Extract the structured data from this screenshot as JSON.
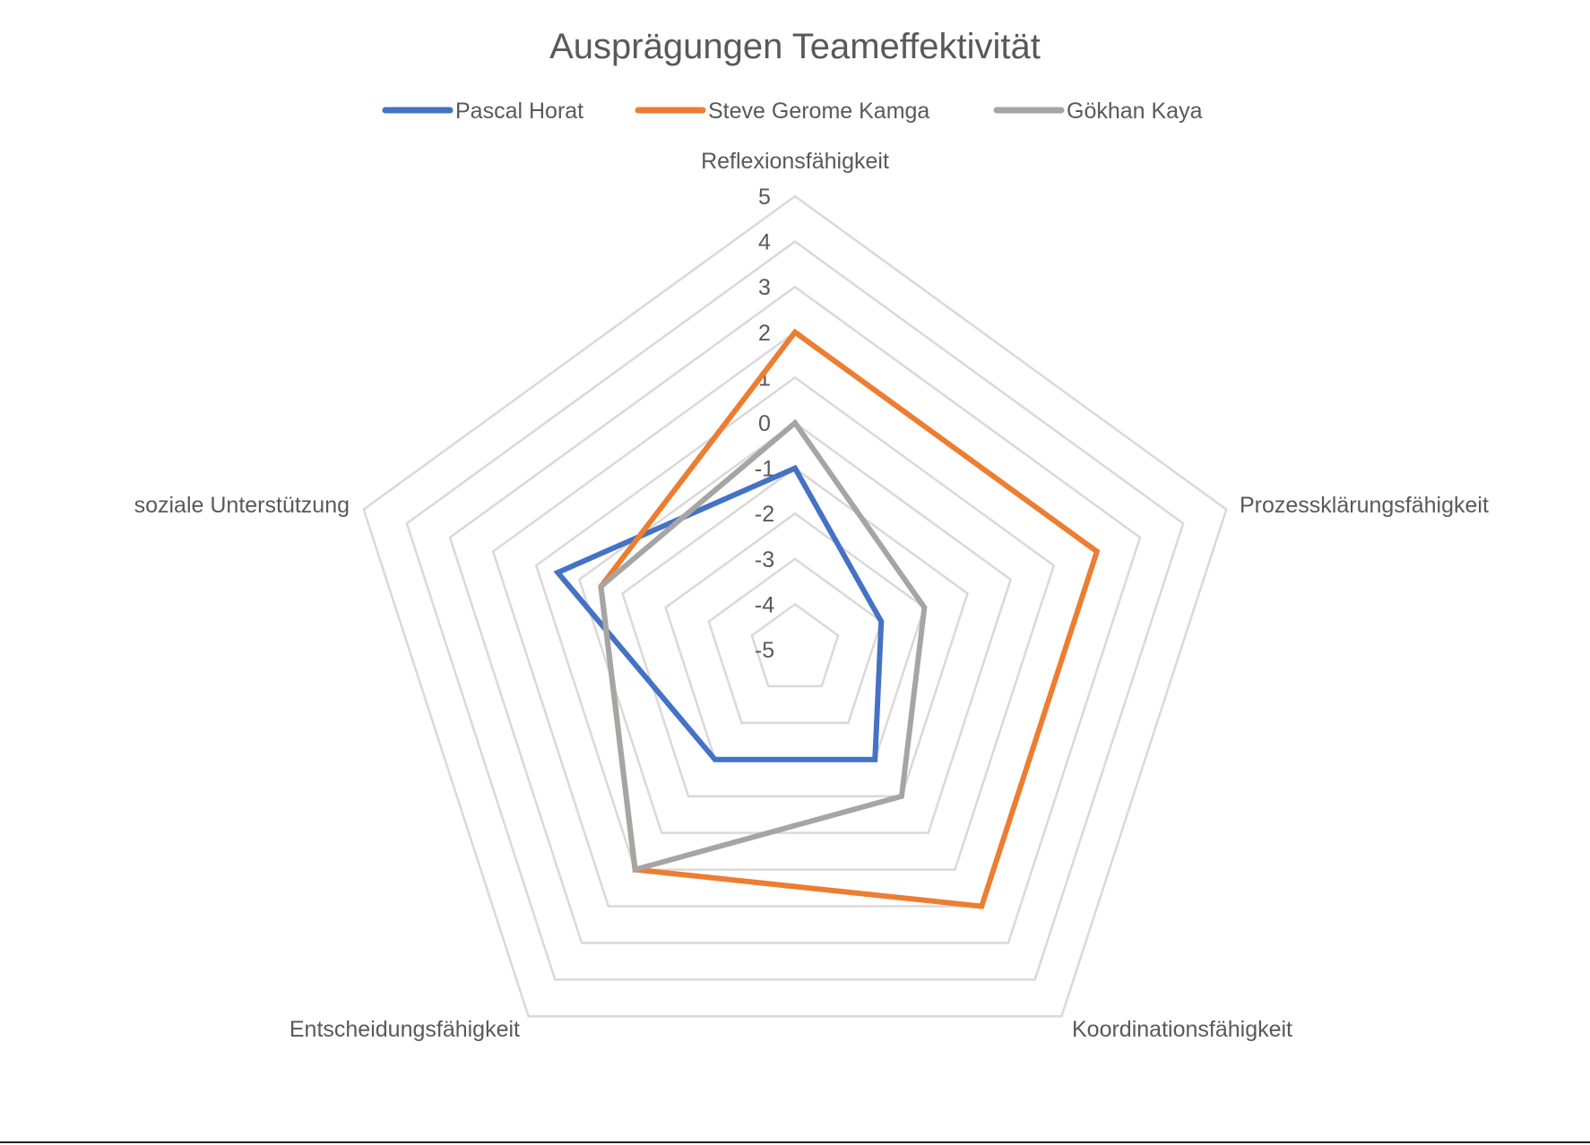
{
  "chart_data": {
    "type": "radar",
    "title": "Ausprägungen Teameffektivität",
    "axes": [
      "Reflexionsfähigkeit",
      "Prozessklärungsfähigkeit",
      "Koordinationsfähigkeit",
      "Entscheidungsfähigkeit",
      "soziale Unterstützung"
    ],
    "rlim": [
      -5,
      5
    ],
    "ticks": [
      "-5",
      "-4",
      "-3",
      "-2",
      "-1",
      "0",
      "1",
      "2",
      "3",
      "4",
      "5"
    ],
    "grid": true,
    "legend_position": "top",
    "series": [
      {
        "name": "Pascal Horat",
        "color": "#4472C4",
        "values": [
          -1,
          -3,
          -2,
          -2,
          0.5
        ]
      },
      {
        "name": "Steve Gerome Kamga",
        "color": "#ED7D31",
        "values": [
          2,
          2,
          2,
          1,
          -0.5
        ]
      },
      {
        "name": "Gökhan Kaya",
        "color": "#A5A5A5",
        "values": [
          0,
          -2,
          -1,
          1,
          -0.5
        ]
      }
    ]
  }
}
